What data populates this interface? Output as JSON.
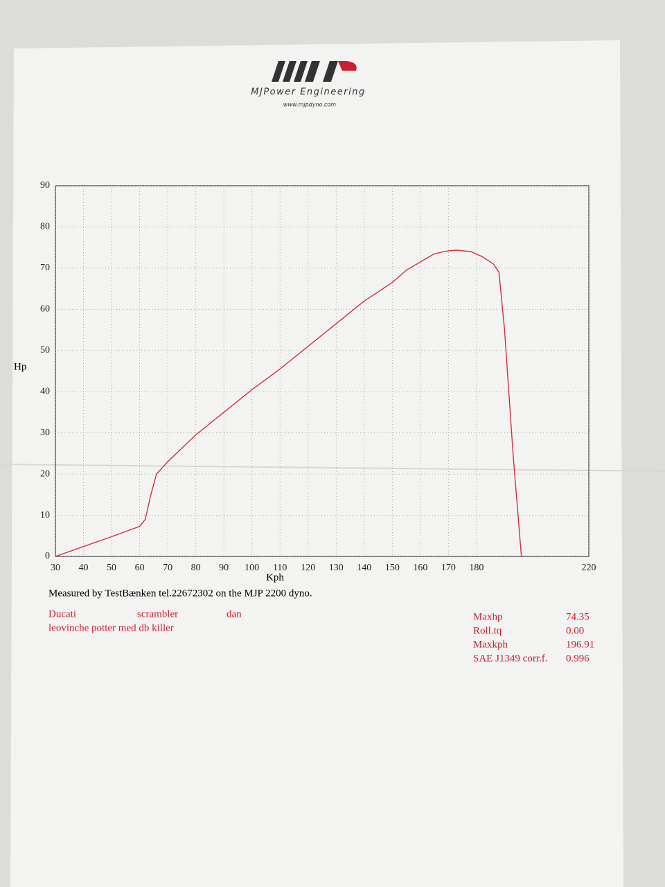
{
  "header": {
    "brand": "MJPower Engineering",
    "website": "www.mjpdyno.com"
  },
  "chart_data": {
    "type": "line",
    "y_label": "Hp",
    "x_label": "Kph",
    "x": [
      30,
      40,
      50,
      60,
      62,
      64,
      66,
      70,
      80,
      90,
      100,
      110,
      120,
      130,
      140,
      150,
      155,
      160,
      165,
      170,
      173,
      178,
      182,
      186,
      188,
      190,
      193,
      196
    ],
    "values": [
      0,
      2.4,
      4.8,
      7.3,
      9,
      15,
      20,
      23,
      29.5,
      35,
      40.5,
      45.5,
      51,
      56.5,
      62,
      66.5,
      69.5,
      71.5,
      73.5,
      74.2,
      74.35,
      74,
      72.8,
      71,
      69,
      55,
      25,
      0
    ],
    "color": "#d0303a",
    "xlim": [
      30,
      220
    ],
    "ylim": [
      0,
      90
    ],
    "xticks": [
      30,
      40,
      50,
      60,
      70,
      80,
      90,
      100,
      110,
      120,
      130,
      140,
      150,
      160,
      170,
      180,
      220
    ],
    "yticks": [
      0,
      10,
      20,
      30,
      40,
      50,
      60,
      70,
      80,
      90
    ],
    "grid": true
  },
  "note": "Measured by TestBænken tel.22672302 on the MJP 2200 dyno.",
  "vehicle": {
    "make": "Ducati",
    "model": "scrambler",
    "owner": "dan",
    "description": "leovinche potter med db killer"
  },
  "results": [
    [
      "Maxhp",
      "74.35"
    ],
    [
      "Roll.tq",
      "0.00"
    ],
    [
      "Maxkph",
      "196.91"
    ],
    [
      "SAE J1349 corr.f.",
      "0.996"
    ]
  ]
}
